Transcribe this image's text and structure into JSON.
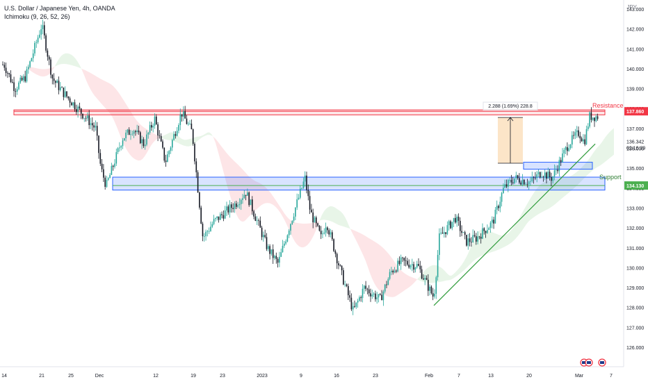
{
  "header": {
    "symbol_title": "U.S. Dollar / Japanese Yen, 4h, OANDA",
    "indicator": "Ichimoku (9, 26, 52, 26)",
    "currency": "JPY"
  },
  "annotations": {
    "resistance_label": "Resistance",
    "support_label": "Support",
    "measure_label": "2.288 (1.69%) 228.8",
    "resistance_price": "137.860",
    "support_price": "134.130",
    "last_price": "136.342",
    "countdown": "02:16:39"
  },
  "colors": {
    "resistance": "#f23645",
    "support_zone": "#2962ff",
    "support_line": "#4caf50",
    "trendline": "#2e9b3a",
    "candle_up": "#26a69a",
    "candle_down": "#131722",
    "measure": "#f9cf9a"
  },
  "chart_data": {
    "type": "candlestick",
    "title": "U.S. Dollar / Japanese Yen, 4h, OANDA",
    "ylabel": "JPY",
    "ylim": [
      125.8,
      143.6
    ],
    "y_ticks": [
      "126.000",
      "127.000",
      "128.000",
      "129.000",
      "130.000",
      "131.000",
      "132.000",
      "133.000",
      "134.000",
      "135.000",
      "136.000",
      "137.000",
      "138.000",
      "139.000",
      "140.000",
      "141.000",
      "142.000",
      "143.000"
    ],
    "x_ticks": [
      "14",
      "21",
      "25",
      "Dec",
      "12",
      "19",
      "23",
      "2023",
      "9",
      "16",
      "23",
      "Feb",
      "7",
      "13",
      "20",
      "Mar",
      "7"
    ],
    "price_path": [
      {
        "x": "Nov 14",
        "y": 140.2
      },
      {
        "x": "Nov 16",
        "y": 139.0
      },
      {
        "x": "Nov 18",
        "y": 139.6
      },
      {
        "x": "Nov 21",
        "y": 142.2
      },
      {
        "x": "Nov 23",
        "y": 139.5
      },
      {
        "x": "Nov 25",
        "y": 138.8
      },
      {
        "x": "Nov 28",
        "y": 137.9
      },
      {
        "x": "Dec 1",
        "y": 137.0
      },
      {
        "x": "Dec 2",
        "y": 135.0
      },
      {
        "x": "Dec 3",
        "y": 134.1
      },
      {
        "x": "Dec 6",
        "y": 136.5
      },
      {
        "x": "Dec 8",
        "y": 137.0
      },
      {
        "x": "Dec 10",
        "y": 136.2
      },
      {
        "x": "Dec 12",
        "y": 137.5
      },
      {
        "x": "Dec 14",
        "y": 135.3
      },
      {
        "x": "Dec 17",
        "y": 137.8
      },
      {
        "x": "Dec 19",
        "y": 136.8
      },
      {
        "x": "Dec 21",
        "y": 131.5
      },
      {
        "x": "Dec 23",
        "y": 132.3
      },
      {
        "x": "Dec 27",
        "y": 133.2
      },
      {
        "x": "Dec 29",
        "y": 133.8
      },
      {
        "x": "Jan 2",
        "y": 131.0
      },
      {
        "x": "Jan 4",
        "y": 130.2
      },
      {
        "x": "Jan 6",
        "y": 132.0
      },
      {
        "x": "Jan 9",
        "y": 134.5
      },
      {
        "x": "Jan 10",
        "y": 132.8
      },
      {
        "x": "Jan 12",
        "y": 131.5
      },
      {
        "x": "Jan 13",
        "y": 132.3
      },
      {
        "x": "Jan 16",
        "y": 129.5
      },
      {
        "x": "Jan 18",
        "y": 127.8
      },
      {
        "x": "Jan 20",
        "y": 129.0
      },
      {
        "x": "Jan 23",
        "y": 128.4
      },
      {
        "x": "Jan 25",
        "y": 129.8
      },
      {
        "x": "Jan 27",
        "y": 130.3
      },
      {
        "x": "Jan 30",
        "y": 130.1
      },
      {
        "x": "Feb 1",
        "y": 129.0
      },
      {
        "x": "Feb 2",
        "y": 128.5
      },
      {
        "x": "Feb 3",
        "y": 131.5
      },
      {
        "x": "Feb 6",
        "y": 132.5
      },
      {
        "x": "Feb 8",
        "y": 131.3
      },
      {
        "x": "Feb 10",
        "y": 131.5
      },
      {
        "x": "Feb 13",
        "y": 132.3
      },
      {
        "x": "Feb 15",
        "y": 134.0
      },
      {
        "x": "Feb 17",
        "y": 134.5
      },
      {
        "x": "Feb 20",
        "y": 134.3
      },
      {
        "x": "Feb 22",
        "y": 134.8
      },
      {
        "x": "Feb 24",
        "y": 134.5
      },
      {
        "x": "Feb 27",
        "y": 136.2
      },
      {
        "x": "Mar 1",
        "y": 136.8
      },
      {
        "x": "Mar 2",
        "y": 136.3
      },
      {
        "x": "Mar 3",
        "y": 137.6
      }
    ],
    "levels": [
      {
        "name": "Resistance",
        "y": 137.86,
        "zone": [
          137.68,
          137.93
        ]
      },
      {
        "name": "Support",
        "y": 134.13,
        "zone": [
          133.9,
          134.55
        ]
      }
    ],
    "measure": {
      "from": 135.25,
      "to": 137.55,
      "label": "2.288 (1.69%) 228.8"
    },
    "trendline": {
      "from": {
        "x": "Feb 2",
        "y": 128.1
      },
      "to": {
        "x": "Mar 3",
        "y": 135.8
      }
    },
    "grid": false
  }
}
